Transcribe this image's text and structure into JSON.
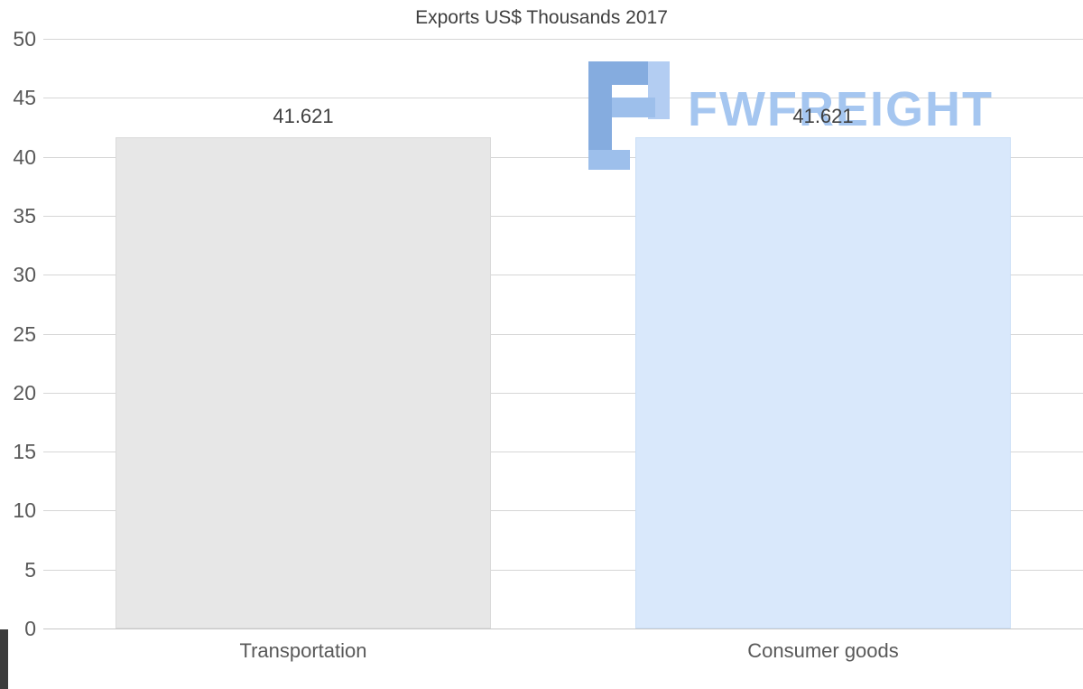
{
  "title": "Exports US$ Thousands 2017",
  "watermark": {
    "text": "FWFREIGHT",
    "text_color": "#a5c6f0",
    "icon_color_dark": "#85acdf",
    "icon_color_mid": "#9dbfeb",
    "icon_color_light": "#b3cdf2"
  },
  "chart_data": {
    "type": "bar",
    "title": "Exports US$ Thousands 2017",
    "categories": [
      "Transportation",
      "Consumer goods"
    ],
    "values": [
      41.621,
      41.621
    ],
    "value_labels": [
      "41.621",
      "41.621"
    ],
    "bar_colors": [
      "#e7e7e7",
      "#d9e8fb"
    ],
    "bar_border_colors": [
      "#dadada",
      "#cadef6"
    ],
    "xlabel": "",
    "ylabel": "",
    "ylim": [
      0,
      50
    ],
    "yticks": [
      0,
      5,
      10,
      15,
      20,
      25,
      30,
      35,
      40,
      45,
      50
    ],
    "grid": true,
    "legend": "none",
    "background": "#ffffff"
  }
}
